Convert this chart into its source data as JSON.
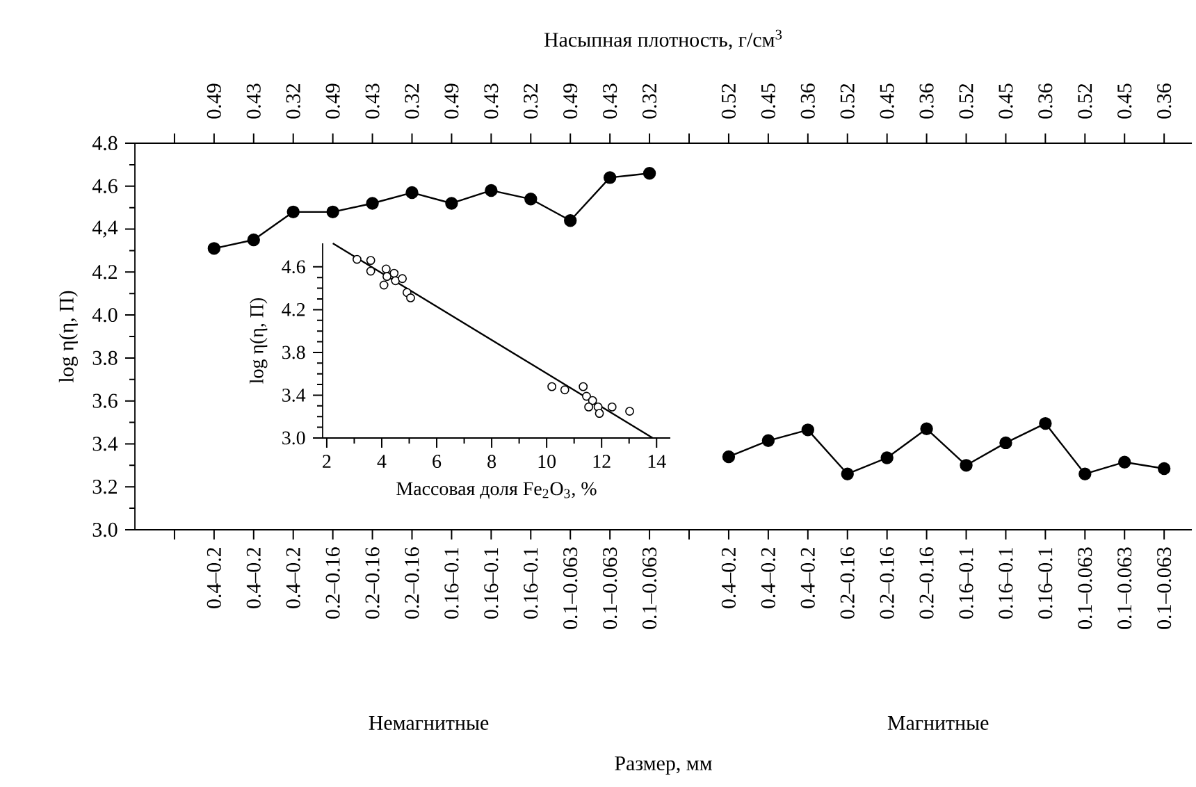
{
  "chart_data": [
    {
      "type": "line",
      "xlabel": "Размер, мм",
      "ylabel": "log η(η, П)",
      "x2label": "Насыпная плотность, г/см$^{3}$",
      "categories": [
        null,
        "0.4–0.2",
        "0.4–0.2",
        "0.4–0.2",
        "0.2–0.16",
        "0.2–0.16",
        "0.2–0.16",
        "0.16–0.1",
        "0.16–0.1",
        "0.16–0.1",
        "0.1–0.063",
        "0.1–0.063",
        "0.1–0.063",
        null,
        "0.4–0.2",
        "0.4–0.2",
        "0.4–0.2",
        "0.2–0.16",
        "0.2–0.16",
        "0.2–0.16",
        "0.16–0.1",
        "0.16–0.1",
        "0.16–0.1",
        "0.1–0.063",
        "0.1–0.063",
        "0.1–0.063"
      ],
      "ylim": [
        3.0,
        4.8
      ],
      "yticks": [
        {
          "value": 3.0,
          "label": "3.0"
        },
        {
          "value": 3.2,
          "label": "3.2"
        },
        {
          "value": 3.4,
          "label": "3.4"
        },
        {
          "value": 3.6,
          "label": "3.6"
        },
        {
          "value": 3.8,
          "label": "3.8"
        },
        {
          "value": 4.0,
          "label": "4.0"
        },
        {
          "value": 4.2,
          "label": "4.2"
        },
        {
          "value": 4.4,
          "label": "4,4"
        },
        {
          "value": 4.6,
          "label": "4.6"
        },
        {
          "value": 4.8,
          "label": "4.8"
        }
      ],
      "marker": "circle",
      "annotations": [
        "Немагнитные",
        "Магнитные",
        "0.49",
        "0.43",
        "0.32",
        "0.49",
        "0.43",
        "0.32",
        "0.49",
        "0.43",
        "0.32",
        "0.49",
        "0.43",
        "0.32",
        "0.52",
        "0.45",
        "0.36",
        "0.52",
        "0.45",
        "0.36",
        "0.52",
        "0.45",
        "0.36",
        "0.52",
        "0.45",
        "0.36"
      ],
      "series": [
        {
          "color": "#000000",
          "values": [
            null,
            4.31,
            4.35,
            4.48,
            4.48,
            4.52,
            4.57,
            4.52,
            4.58,
            4.54,
            4.44,
            4.64,
            4.66,
            null,
            3.34,
            3.415,
            3.465,
            3.26,
            3.335,
            3.47,
            3.3,
            3.405,
            3.495,
            3.26,
            3.315,
            3.285
          ]
        }
      ]
    },
    {
      "type": "scatter",
      "xlabel": "Массовая доля Fe$_{2}$O$_{3}$, %",
      "ylabel": "log η(η, П)",
      "xlim": [
        1.85,
        14.5
      ],
      "ylim": [
        3.0,
        4.82
      ],
      "xticks": [
        2,
        4,
        6,
        8,
        10,
        12,
        14
      ],
      "yticks": [
        {
          "value": 3.0,
          "label": "3.0"
        },
        {
          "value": 3.4,
          "label": "3.4"
        },
        {
          "value": 3.8,
          "label": "3.8"
        },
        {
          "value": 4.2,
          "label": "4.2"
        },
        {
          "value": 4.6,
          "label": "4.6"
        }
      ],
      "marker": "circle",
      "series": [
        {
          "type": "scatter",
          "color": "#000000",
          "x": [
            3.1,
            3.6,
            3.6,
            4.16,
            4.08,
            4.19,
            4.45,
            4.5,
            4.75,
            4.92,
            5.05,
            10.19,
            10.66,
            11.33,
            11.45,
            11.67,
            11.53,
            11.87,
            11.92,
            12.38,
            13.02
          ],
          "values": [
            4.67,
            4.66,
            4.56,
            4.58,
            4.43,
            4.51,
            4.54,
            4.47,
            4.49,
            4.36,
            4.31,
            3.48,
            3.45,
            3.48,
            3.39,
            3.35,
            3.29,
            3.29,
            3.23,
            3.29,
            3.25
          ]
        },
        {
          "type": "line",
          "marker": "none",
          "color": "#000000",
          "x": [
            2.22,
            13.86
          ],
          "values": [
            4.82,
            3.0
          ]
        }
      ]
    }
  ]
}
